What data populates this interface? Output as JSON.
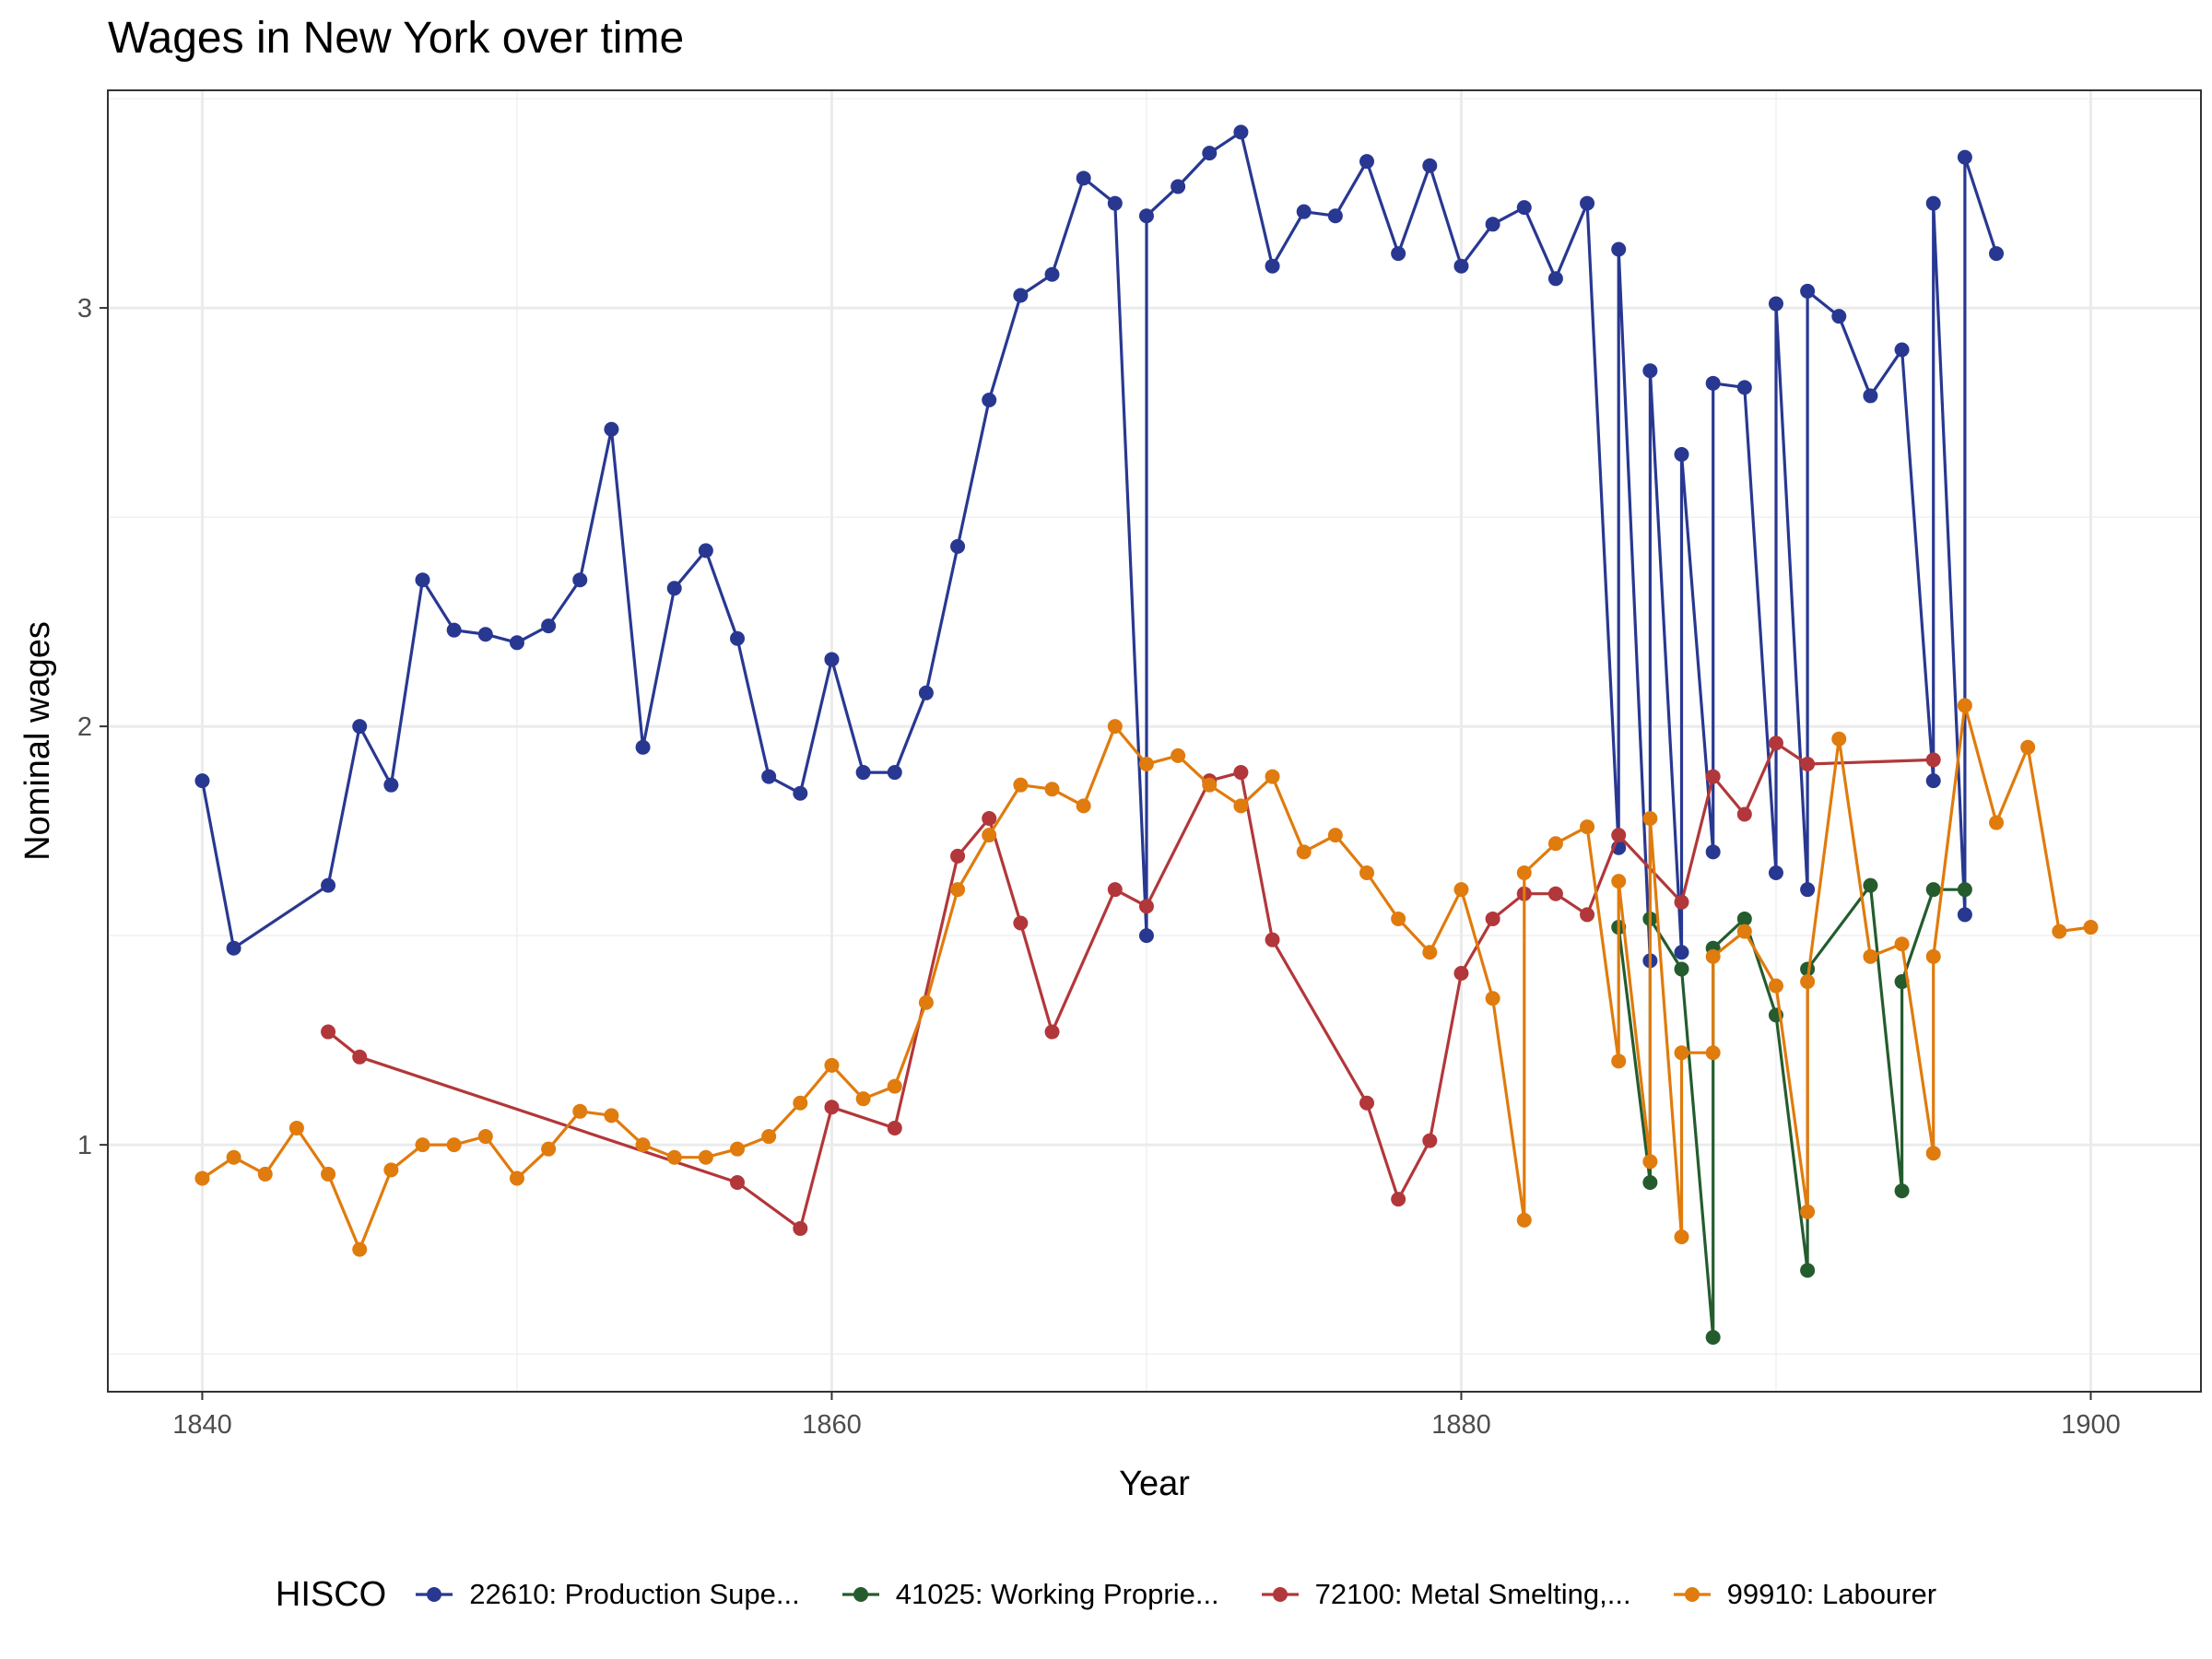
{
  "chart_data": {
    "type": "line",
    "title": "Wages in New York over time",
    "xlabel": "Year",
    "ylabel": "Nominal wages",
    "xlim": [
      1837,
      1903.5
    ],
    "ylim": [
      0.41,
      3.52
    ],
    "xticks": [
      1840,
      1860,
      1880,
      1900
    ],
    "yticks": [
      1,
      2,
      3
    ],
    "grid": true,
    "legend_position": "bottom",
    "legend_title": "HISCO",
    "series": [
      {
        "name": "22610: Production Supe...",
        "color": "#283891",
        "points": [
          [
            1840,
            1.87
          ],
          [
            1841,
            1.47
          ],
          [
            1844,
            1.62
          ],
          [
            1845,
            2.0
          ],
          [
            1846,
            1.86
          ],
          [
            1847,
            2.35
          ],
          [
            1848,
            2.23
          ],
          [
            1849,
            2.22
          ],
          [
            1850,
            2.2
          ],
          [
            1851,
            2.24
          ],
          [
            1852,
            2.35
          ],
          [
            1853,
            2.71
          ],
          [
            1854,
            1.95
          ],
          [
            1855,
            2.33
          ],
          [
            1856,
            2.42
          ],
          [
            1857,
            2.21
          ],
          [
            1858,
            1.88
          ],
          [
            1859,
            1.84
          ],
          [
            1860,
            2.16
          ],
          [
            1861,
            1.89
          ],
          [
            1862,
            1.89
          ],
          [
            1863,
            2.08
          ],
          [
            1864,
            2.43
          ],
          [
            1865,
            2.78
          ],
          [
            1866,
            3.03
          ],
          [
            1867,
            3.08
          ],
          [
            1868,
            3.31
          ],
          [
            1869,
            3.25
          ],
          [
            1870,
            1.5
          ],
          [
            1870,
            3.22
          ],
          [
            1871,
            3.29
          ],
          [
            1872,
            3.37
          ],
          [
            1873,
            3.42
          ],
          [
            1874,
            3.1
          ],
          [
            1875,
            3.23
          ],
          [
            1876,
            3.22
          ],
          [
            1877,
            3.35
          ],
          [
            1878,
            3.13
          ],
          [
            1879,
            3.34
          ],
          [
            1880,
            3.1
          ],
          [
            1881,
            3.2
          ],
          [
            1882,
            3.24
          ],
          [
            1883,
            3.07
          ],
          [
            1884,
            3.25
          ],
          [
            1885,
            1.71
          ],
          [
            1885,
            3.14
          ],
          [
            1886,
            1.44
          ],
          [
            1886,
            2.85
          ],
          [
            1887,
            1.46
          ],
          [
            1887,
            2.65
          ],
          [
            1888,
            1.7
          ],
          [
            1888,
            2.82
          ],
          [
            1889,
            2.81
          ],
          [
            1890,
            1.65
          ],
          [
            1890,
            3.01
          ],
          [
            1891,
            1.61
          ],
          [
            1891,
            3.04
          ],
          [
            1892,
            2.98
          ],
          [
            1893,
            2.79
          ],
          [
            1894,
            2.9
          ],
          [
            1895,
            1.87
          ],
          [
            1895,
            3.25
          ],
          [
            1896,
            1.55
          ],
          [
            1896,
            3.36
          ],
          [
            1897,
            3.13
          ]
        ]
      },
      {
        "name": "41025: Working Proprie...",
        "color": "#245c2e",
        "points": [
          [
            1885,
            1.52
          ],
          [
            1886,
            0.91
          ],
          [
            1886,
            1.54
          ],
          [
            1887,
            1.42
          ],
          [
            1888,
            0.54
          ],
          [
            1888,
            1.47
          ],
          [
            1889,
            1.54
          ],
          [
            1890,
            1.31
          ],
          [
            1891,
            0.7
          ],
          [
            1891,
            1.42
          ],
          [
            1893,
            1.62
          ],
          [
            1894,
            0.89
          ],
          [
            1894,
            1.39
          ],
          [
            1895,
            1.61
          ],
          [
            1896,
            1.61
          ]
        ]
      },
      {
        "name": "72100: Metal Smelting,...",
        "color": "#b2373a",
        "points": [
          [
            1844,
            1.27
          ],
          [
            1845,
            1.21
          ],
          [
            1857,
            0.91
          ],
          [
            1859,
            0.8
          ],
          [
            1860,
            1.09
          ],
          [
            1862,
            1.04
          ],
          [
            1864,
            1.69
          ],
          [
            1865,
            1.78
          ],
          [
            1866,
            1.53
          ],
          [
            1867,
            1.27
          ],
          [
            1869,
            1.61
          ],
          [
            1870,
            1.57
          ],
          [
            1872,
            1.87
          ],
          [
            1873,
            1.89
          ],
          [
            1874,
            1.49
          ],
          [
            1877,
            1.1
          ],
          [
            1878,
            0.87
          ],
          [
            1879,
            1.01
          ],
          [
            1880,
            1.41
          ],
          [
            1881,
            1.54
          ],
          [
            1882,
            1.6
          ],
          [
            1883,
            1.6
          ],
          [
            1884,
            1.55
          ],
          [
            1885,
            1.74
          ],
          [
            1887,
            1.58
          ],
          [
            1888,
            1.88
          ],
          [
            1889,
            1.79
          ],
          [
            1890,
            1.96
          ],
          [
            1891,
            1.91
          ],
          [
            1895,
            1.92
          ]
        ]
      },
      {
        "name": "99910: Labourer",
        "color": "#e07b0d",
        "points": [
          [
            1840,
            0.92
          ],
          [
            1841,
            0.97
          ],
          [
            1842,
            0.93
          ],
          [
            1843,
            1.04
          ],
          [
            1844,
            0.93
          ],
          [
            1845,
            0.75
          ],
          [
            1846,
            0.94
          ],
          [
            1847,
            1.0
          ],
          [
            1848,
            1.0
          ],
          [
            1849,
            1.02
          ],
          [
            1850,
            0.92
          ],
          [
            1851,
            0.99
          ],
          [
            1852,
            1.08
          ],
          [
            1853,
            1.07
          ],
          [
            1854,
            1.0
          ],
          [
            1855,
            0.97
          ],
          [
            1856,
            0.97
          ],
          [
            1857,
            0.99
          ],
          [
            1858,
            1.02
          ],
          [
            1859,
            1.1
          ],
          [
            1860,
            1.19
          ],
          [
            1861,
            1.11
          ],
          [
            1862,
            1.14
          ],
          [
            1863,
            1.34
          ],
          [
            1864,
            1.61
          ],
          [
            1865,
            1.74
          ],
          [
            1866,
            1.86
          ],
          [
            1867,
            1.85
          ],
          [
            1868,
            1.81
          ],
          [
            1869,
            2.0
          ],
          [
            1870,
            1.91
          ],
          [
            1871,
            1.93
          ],
          [
            1872,
            1.86
          ],
          [
            1873,
            1.81
          ],
          [
            1874,
            1.88
          ],
          [
            1875,
            1.7
          ],
          [
            1876,
            1.74
          ],
          [
            1877,
            1.65
          ],
          [
            1878,
            1.54
          ],
          [
            1879,
            1.46
          ],
          [
            1880,
            1.61
          ],
          [
            1881,
            1.35
          ],
          [
            1882,
            0.82
          ],
          [
            1882,
            1.65
          ],
          [
            1883,
            1.72
          ],
          [
            1884,
            1.76
          ],
          [
            1885,
            1.2
          ],
          [
            1885,
            1.63
          ],
          [
            1886,
            0.96
          ],
          [
            1886,
            1.78
          ],
          [
            1887,
            0.78
          ],
          [
            1887,
            1.22
          ],
          [
            1888,
            1.22
          ],
          [
            1888,
            1.45
          ],
          [
            1889,
            1.51
          ],
          [
            1890,
            1.38
          ],
          [
            1891,
            0.84
          ],
          [
            1891,
            1.39
          ],
          [
            1892,
            1.97
          ],
          [
            1893,
            1.45
          ],
          [
            1894,
            1.48
          ],
          [
            1895,
            0.98
          ],
          [
            1895,
            1.45
          ],
          [
            1896,
            2.05
          ],
          [
            1897,
            1.77
          ],
          [
            1898,
            1.95
          ],
          [
            1899,
            1.51
          ],
          [
            1900,
            1.52
          ]
        ]
      }
    ]
  }
}
